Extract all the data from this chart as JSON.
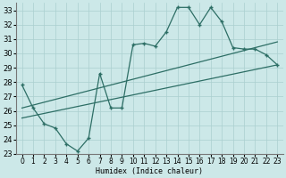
{
  "xlabel": "Humidex (Indice chaleur)",
  "bg_color": "#cce8e8",
  "line_color": "#2d6e65",
  "grid_color": "#aacfcf",
  "xlim": [
    -0.5,
    23.5
  ],
  "ylim": [
    23,
    33.5
  ],
  "xticks": [
    0,
    1,
    2,
    3,
    4,
    5,
    6,
    7,
    8,
    9,
    10,
    11,
    12,
    13,
    14,
    15,
    16,
    17,
    18,
    19,
    20,
    21,
    22,
    23
  ],
  "yticks": [
    23,
    24,
    25,
    26,
    27,
    28,
    29,
    30,
    31,
    32,
    33
  ],
  "line1_x": [
    0,
    1,
    2,
    3,
    4,
    5,
    6,
    7,
    8,
    9,
    10,
    11,
    12,
    13,
    14,
    15,
    16,
    17,
    18,
    19,
    20,
    21,
    22,
    23
  ],
  "line1_y": [
    27.8,
    26.2,
    25.1,
    24.8,
    23.7,
    23.2,
    24.1,
    28.6,
    26.2,
    26.2,
    30.6,
    30.7,
    30.5,
    31.5,
    33.2,
    33.2,
    32.0,
    33.2,
    32.2,
    30.4,
    30.3,
    30.3,
    29.9,
    29.2
  ],
  "line2_x": [
    0,
    23
  ],
  "line2_y": [
    25.5,
    29.2
  ],
  "line3_x": [
    0,
    23
  ],
  "line3_y": [
    26.2,
    30.8
  ]
}
